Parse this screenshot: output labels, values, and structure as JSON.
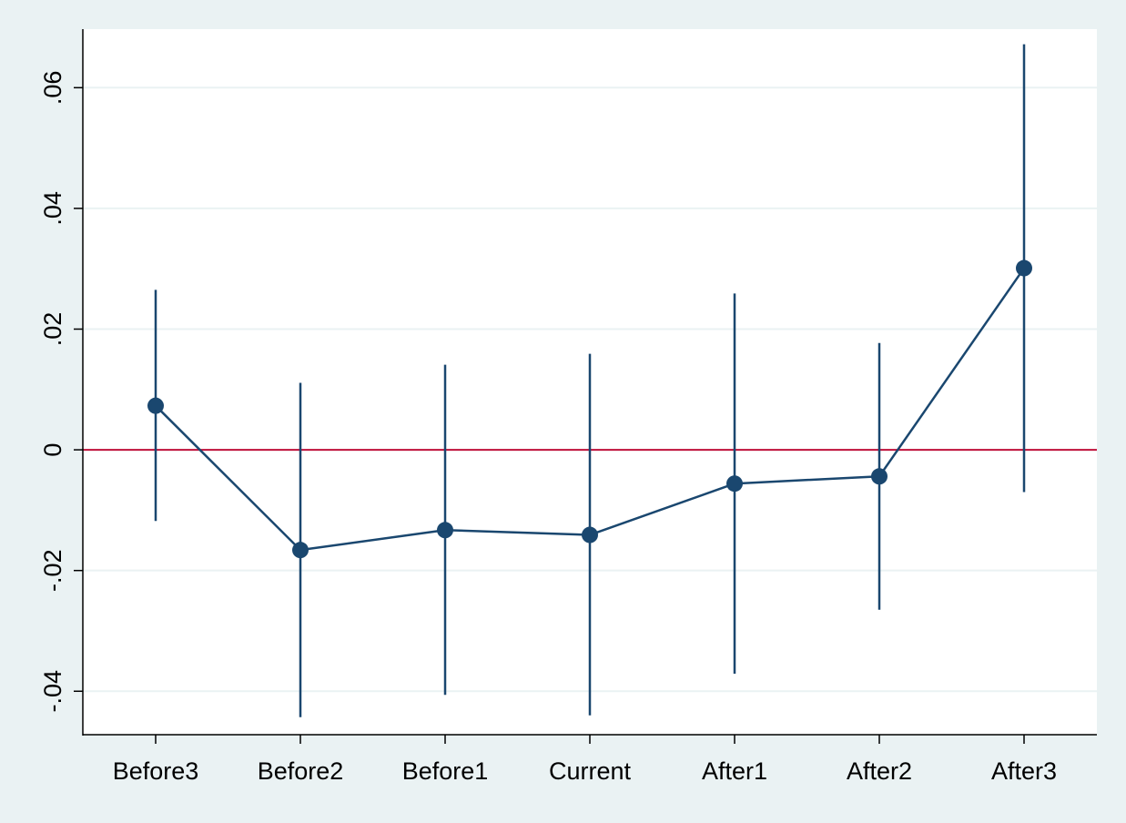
{
  "chart_data": {
    "type": "line",
    "title": "",
    "xlabel": "",
    "ylabel": "",
    "categories": [
      "Before3",
      "Before2",
      "Before1",
      "Current",
      "After1",
      "After2",
      "After3"
    ],
    "series": [
      {
        "values": [
          0.0073,
          -0.0166,
          -0.0133,
          -0.0141,
          -0.0056,
          -0.0044,
          0.0301
        ],
        "ci_low": [
          -0.0118,
          -0.0443,
          -0.0406,
          -0.044,
          -0.0371,
          -0.0265,
          -0.007
        ],
        "ci_high": [
          0.0265,
          0.0111,
          0.0141,
          0.0159,
          0.0259,
          0.0177,
          0.0672
        ]
      }
    ],
    "ylim": [
      -0.0472,
      0.0697
    ],
    "yticks": [
      -0.04,
      -0.02,
      0,
      0.02,
      0.04,
      0.06
    ],
    "ytick_labels": [
      "-.04",
      "-.02",
      "0",
      ".02",
      ".04",
      ".06"
    ],
    "reference_line": {
      "y": 0,
      "color": "#c0103a"
    },
    "grid": true,
    "colors": {
      "series": "#1a476f",
      "grid": "#eaf2f3",
      "plot_background": "#ffffff",
      "outer_background": "#eaf2f3"
    }
  }
}
